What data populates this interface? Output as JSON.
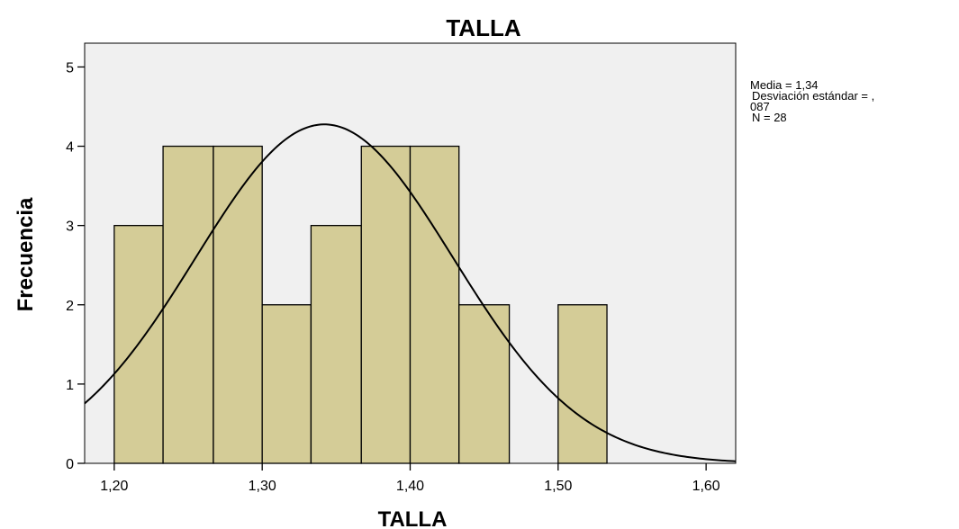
{
  "colors": {
    "plot_background": "#f0f0f0",
    "bar_fill": "#d4cc97",
    "bar_stroke": "#000000",
    "curve": "#000000"
  },
  "chart_data": {
    "type": "bar",
    "title": "TALLA",
    "xlabel": "TALLA",
    "ylabel": "Frecuencia",
    "bins": [
      {
        "start": 1.2,
        "end": 1.233,
        "count": 3
      },
      {
        "start": 1.233,
        "end": 1.267,
        "count": 4
      },
      {
        "start": 1.267,
        "end": 1.3,
        "count": 4
      },
      {
        "start": 1.3,
        "end": 1.333,
        "count": 2
      },
      {
        "start": 1.333,
        "end": 1.367,
        "count": 3
      },
      {
        "start": 1.367,
        "end": 1.4,
        "count": 4
      },
      {
        "start": 1.4,
        "end": 1.433,
        "count": 4
      },
      {
        "start": 1.433,
        "end": 1.467,
        "count": 2
      },
      {
        "start": 1.5,
        "end": 1.533,
        "count": 2
      }
    ],
    "xlim": [
      1.18,
      1.62
    ],
    "ylim": [
      0,
      5.3
    ],
    "xticks": [
      {
        "value": 1.2,
        "label": "1,20"
      },
      {
        "value": 1.3,
        "label": "1,30"
      },
      {
        "value": 1.4,
        "label": "1,40"
      },
      {
        "value": 1.5,
        "label": "1,50"
      },
      {
        "value": 1.6,
        "label": "1,60"
      }
    ],
    "yticks": [
      {
        "value": 0,
        "label": "0"
      },
      {
        "value": 1,
        "label": "1"
      },
      {
        "value": 2,
        "label": "2"
      },
      {
        "value": 3,
        "label": "3"
      },
      {
        "value": 4,
        "label": "4"
      },
      {
        "value": 5,
        "label": "5"
      }
    ],
    "normal_curve": {
      "mean": 1.342,
      "sd": 0.087,
      "n": 28,
      "bin_width": 0.0333
    },
    "stats": {
      "lines": [
        "Media = 1,34",
        "Desviación estándar = ,",
        "087",
        "N = 28"
      ]
    },
    "grid": false
  }
}
